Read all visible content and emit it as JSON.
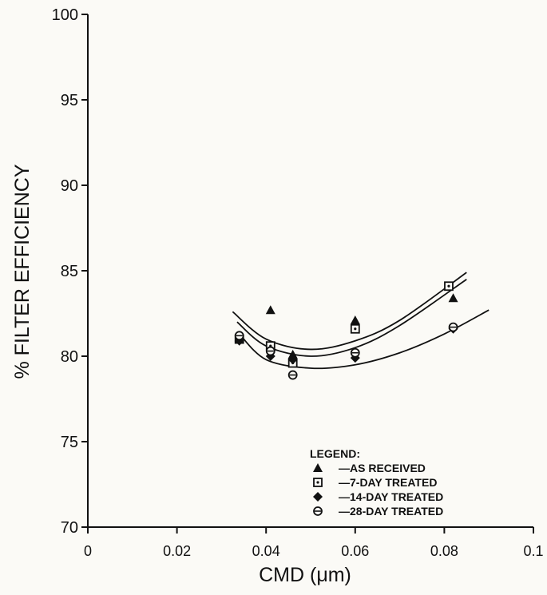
{
  "chart_data": {
    "type": "scatter",
    "xlabel": "CMD (μm)",
    "ylabel": "% FILTER EFFICIENCY",
    "xlim": [
      0,
      0.1
    ],
    "ylim": [
      70,
      100
    ],
    "x_ticks": [
      "0",
      "0.02",
      "0.04",
      "0.06",
      "0.08",
      "0.1"
    ],
    "y_ticks": [
      "70",
      "75",
      "80",
      "85",
      "90",
      "95",
      "100"
    ],
    "grid": false,
    "legend_title": "LEGEND:",
    "legend_position": "bottom-right",
    "series": [
      {
        "name": "—AS RECEIVED",
        "marker": "filled-triangle",
        "points": [
          [
            0.034,
            81.1
          ],
          [
            0.041,
            82.7
          ],
          [
            0.046,
            80.1
          ],
          [
            0.06,
            82.1
          ],
          [
            0.082,
            83.4
          ]
        ],
        "fit": [
          [
            0.0325,
            82.6
          ],
          [
            0.04,
            81.0
          ],
          [
            0.05,
            80.4
          ],
          [
            0.06,
            80.9
          ],
          [
            0.07,
            82.1
          ],
          [
            0.085,
            84.9
          ]
        ]
      },
      {
        "name": "—7-DAY TREATED",
        "marker": "square-with-dot",
        "points": [
          [
            0.034,
            81.0
          ],
          [
            0.041,
            80.6
          ],
          [
            0.046,
            79.6
          ],
          [
            0.06,
            81.6
          ],
          [
            0.081,
            84.1
          ]
        ],
        "fit": [
          [
            0.0335,
            82.0
          ],
          [
            0.04,
            80.6
          ],
          [
            0.05,
            80.0
          ],
          [
            0.06,
            80.5
          ],
          [
            0.07,
            81.8
          ],
          [
            0.085,
            84.5
          ]
        ]
      },
      {
        "name": "—14-DAY TREATED",
        "marker": "filled-diamond",
        "points": [
          [
            0.034,
            80.9
          ],
          [
            0.041,
            80.0
          ],
          [
            0.046,
            79.8
          ],
          [
            0.06,
            79.9
          ],
          [
            0.082,
            81.6
          ]
        ],
        "fit": [
          [
            0.034,
            81.3
          ],
          [
            0.04,
            79.8
          ],
          [
            0.05,
            79.3
          ],
          [
            0.06,
            79.5
          ],
          [
            0.07,
            80.2
          ],
          [
            0.08,
            81.3
          ],
          [
            0.09,
            82.7
          ]
        ]
      },
      {
        "name": "—28-DAY TREATED",
        "marker": "circle-with-bar",
        "points": [
          [
            0.034,
            81.2
          ],
          [
            0.041,
            80.3
          ],
          [
            0.046,
            78.9
          ],
          [
            0.06,
            80.2
          ],
          [
            0.082,
            81.7
          ]
        ],
        "fit": null
      }
    ]
  }
}
